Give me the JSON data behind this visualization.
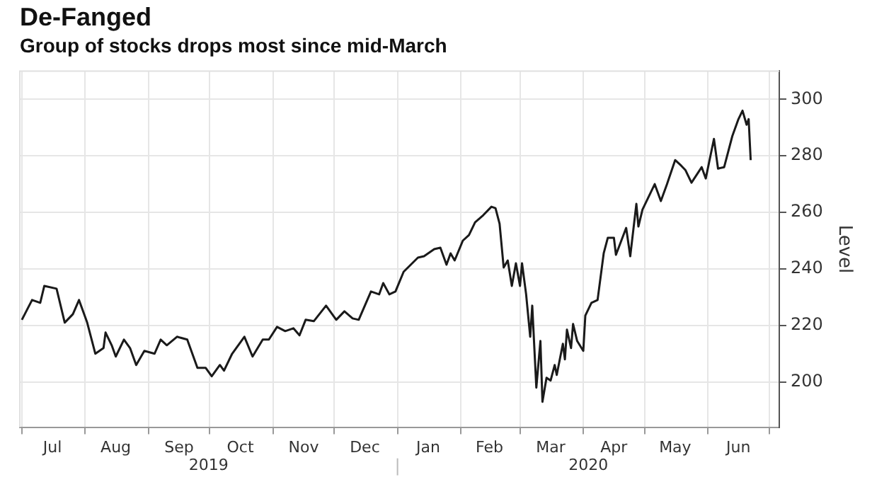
{
  "chart_data": {
    "type": "line",
    "title": "De-Fanged",
    "subtitle": "Group of stocks drops most since mid-March",
    "ylabel": "Level",
    "x": [
      "2019-07-01",
      "2019-07-06",
      "2019-07-10",
      "2019-07-12",
      "2019-07-18",
      "2019-07-22",
      "2019-07-26",
      "2019-07-29",
      "2019-08-02",
      "2019-08-06",
      "2019-08-10",
      "2019-08-11",
      "2019-08-14",
      "2019-08-16",
      "2019-08-20",
      "2019-08-23",
      "2019-08-26",
      "2019-08-30",
      "2019-09-04",
      "2019-09-07",
      "2019-09-10",
      "2019-09-15",
      "2019-09-20",
      "2019-09-25",
      "2019-09-29",
      "2019-10-02",
      "2019-10-06",
      "2019-10-08",
      "2019-10-12",
      "2019-10-18",
      "2019-10-22",
      "2019-10-27",
      "2019-10-30",
      "2019-11-03",
      "2019-11-07",
      "2019-11-11",
      "2019-11-14",
      "2019-11-17",
      "2019-11-21",
      "2019-11-27",
      "2019-12-02",
      "2019-12-06",
      "2019-12-10",
      "2019-12-13",
      "2019-12-19",
      "2019-12-23",
      "2019-12-25",
      "2019-12-28",
      "2019-12-31",
      "2020-01-04",
      "2020-01-11",
      "2020-01-14",
      "2020-01-19",
      "2020-01-22",
      "2020-01-25",
      "2020-01-27",
      "2020-01-29",
      "2020-02-02",
      "2020-02-05",
      "2020-02-08",
      "2020-02-12",
      "2020-02-16",
      "2020-02-18",
      "2020-02-20",
      "2020-02-22",
      "2020-02-24",
      "2020-02-26",
      "2020-02-28",
      "2020-03-01",
      "2020-03-02",
      "2020-03-04",
      "2020-03-06",
      "2020-03-07",
      "2020-03-09",
      "2020-03-11",
      "2020-03-12",
      "2020-03-14",
      "2020-03-16",
      "2020-03-18",
      "2020-03-19",
      "2020-03-22",
      "2020-03-23",
      "2020-03-24",
      "2020-03-26",
      "2020-03-27",
      "2020-03-29",
      "2020-04-01",
      "2020-04-02",
      "2020-04-05",
      "2020-04-08",
      "2020-04-11",
      "2020-04-13",
      "2020-04-16",
      "2020-04-17",
      "2020-04-22",
      "2020-04-24",
      "2020-04-27",
      "2020-04-28",
      "2020-04-30",
      "2020-05-02",
      "2020-05-06",
      "2020-05-09",
      "2020-05-12",
      "2020-05-16",
      "2020-05-19",
      "2020-05-21",
      "2020-05-24",
      "2020-05-29",
      "2020-05-31",
      "2020-06-04",
      "2020-06-06",
      "2020-06-09",
      "2020-06-13",
      "2020-06-16",
      "2020-06-18",
      "2020-06-20",
      "2020-06-21",
      "2020-06-22"
    ],
    "series": [
      {
        "color": "#1a1a1a",
        "values": [
          222,
          229,
          228,
          234,
          233,
          221,
          224,
          229,
          221,
          210,
          212,
          217.5,
          213,
          209,
          215,
          212,
          206,
          211,
          210,
          215,
          213,
          216,
          215,
          205,
          205,
          202,
          206,
          204,
          210,
          216,
          209,
          215,
          215,
          219.5,
          218,
          219,
          216.5,
          222,
          221.5,
          227,
          222,
          225,
          222.5,
          222,
          232,
          231,
          235,
          231,
          232,
          239,
          244,
          244.5,
          247,
          247.5,
          241.5,
          245.5,
          243,
          250,
          252,
          256.5,
          259,
          262,
          261.5,
          256,
          240.5,
          243,
          234,
          242,
          234,
          242,
          231,
          216,
          227,
          198,
          214.5,
          193,
          201.5,
          200.5,
          206,
          202.5,
          213.5,
          208,
          218.5,
          212,
          220.5,
          214.5,
          211,
          223.5,
          228,
          229,
          245.5,
          251,
          251,
          245,
          254.5,
          244.5,
          263,
          255,
          261,
          264,
          270,
          264,
          270,
          278.5,
          276.5,
          275,
          270.5,
          276,
          272,
          286,
          275.5,
          276,
          287,
          293,
          296,
          291,
          293,
          278.5
        ]
      }
    ],
    "xlim": [
      "2019-06-30",
      "2020-07-06"
    ],
    "xticks": [
      {
        "value": "2019-07-01",
        "label": null
      },
      {
        "value": "2019-07-16",
        "label": "Jul"
      },
      {
        "value": "2019-08-01",
        "label": null
      },
      {
        "value": "2019-08-16",
        "label": "Aug"
      },
      {
        "value": "2019-09-01",
        "label": null
      },
      {
        "value": "2019-09-16",
        "label": "Sep"
      },
      {
        "value": "2019-10-01",
        "label": null
      },
      {
        "value": "2019-10-16",
        "label": "Oct"
      },
      {
        "value": "2019-11-01",
        "label": null
      },
      {
        "value": "2019-11-16",
        "label": "Nov"
      },
      {
        "value": "2019-12-01",
        "label": null
      },
      {
        "value": "2019-12-16",
        "label": "Dec"
      },
      {
        "value": "2020-01-01",
        "label": null
      },
      {
        "value": "2020-01-16",
        "label": "Jan"
      },
      {
        "value": "2020-02-01",
        "label": null
      },
      {
        "value": "2020-02-15",
        "label": "Feb"
      },
      {
        "value": "2020-03-01",
        "label": null
      },
      {
        "value": "2020-03-16",
        "label": "Mar"
      },
      {
        "value": "2020-04-01",
        "label": null
      },
      {
        "value": "2020-04-16",
        "label": "Apr"
      },
      {
        "value": "2020-05-01",
        "label": null
      },
      {
        "value": "2020-05-16",
        "label": "May"
      },
      {
        "value": "2020-06-01",
        "label": null
      },
      {
        "value": "2020-06-16",
        "label": "Jun"
      },
      {
        "value": "2020-07-01",
        "label": null
      }
    ],
    "annotations": [
      "2019",
      "2020"
    ],
    "ylim": [
      184,
      310
    ],
    "yticks": [
      200,
      220,
      240,
      260,
      280,
      300
    ],
    "grid": true,
    "legend": false,
    "marker": "none",
    "line_style": "solid"
  }
}
